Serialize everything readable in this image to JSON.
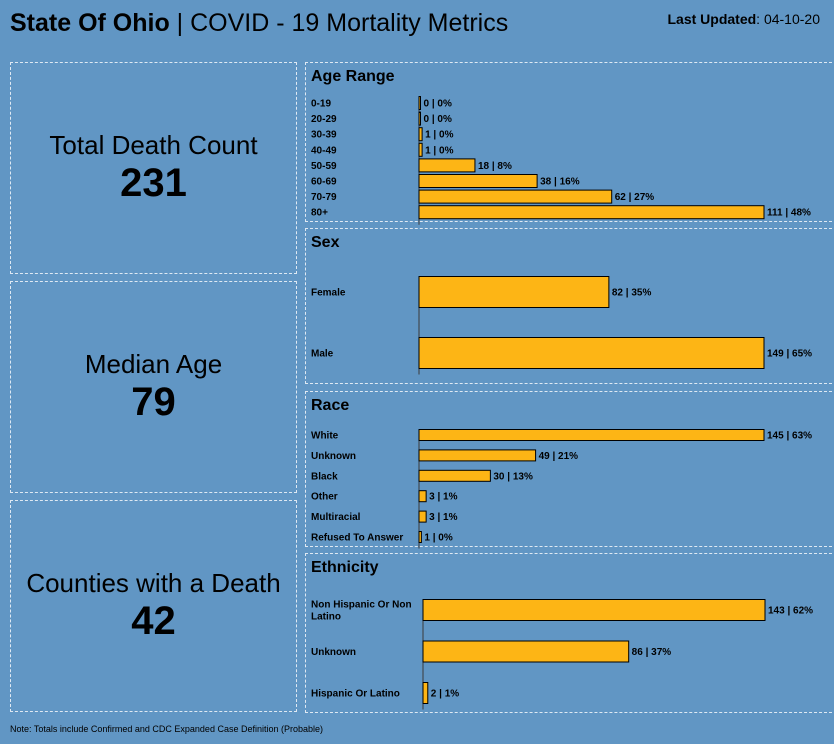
{
  "header": {
    "title_bold": "State Of Ohio",
    "title_rest": " | COVID - 19 Mortality Metrics",
    "updated_label": "Last Updated",
    "updated_value": ": 04-10-20"
  },
  "kpis": [
    {
      "label": "Total Death Count",
      "value": "231"
    },
    {
      "label": "Median Age",
      "value": "79"
    },
    {
      "label": "Counties with a Death",
      "value": "42"
    }
  ],
  "footnote": "Note: Totals include Confirmed and CDC Expanded Case Definition (Probable)",
  "colors": {
    "background": "#6196c4",
    "bar": "#fdb515",
    "bar_outline": "#000000",
    "border": "#dfe9f3"
  },
  "chart_data": [
    {
      "type": "bar",
      "orientation": "horizontal",
      "title": "Age Range",
      "categories": [
        "0-19",
        "20-29",
        "30-39",
        "40-49",
        "50-59",
        "60-69",
        "70-79",
        "80+"
      ],
      "values": [
        0,
        0,
        1,
        1,
        18,
        38,
        62,
        111
      ],
      "data_labels": [
        "0 | 0%",
        "0 | 0%",
        "1 | 0%",
        "1 | 0%",
        "18 | 8%",
        "38 | 16%",
        "62 | 27%",
        "111 | 48%"
      ]
    },
    {
      "type": "bar",
      "orientation": "horizontal",
      "title": "Sex",
      "categories": [
        "Female",
        "Male"
      ],
      "values": [
        82,
        149
      ],
      "data_labels": [
        "82 | 35%",
        "149 | 65%"
      ]
    },
    {
      "type": "bar",
      "orientation": "horizontal",
      "title": "Race",
      "categories": [
        "White",
        "Unknown",
        "Black",
        "Other",
        "Multiracial",
        "Refused To Answer"
      ],
      "values": [
        145,
        49,
        30,
        3,
        3,
        1
      ],
      "data_labels": [
        "145 | 63%",
        "49 | 21%",
        "30 | 13%",
        "3 | 1%",
        "3 | 1%",
        "1 | 0%"
      ]
    },
    {
      "type": "bar",
      "orientation": "horizontal",
      "title": "Ethnicity",
      "categories": [
        [
          "Non Hispanic Or Non",
          "Latino"
        ],
        "Unknown",
        "Hispanic Or Latino"
      ],
      "values": [
        143,
        86,
        2
      ],
      "data_labels": [
        "143 | 62%",
        "86 | 37%",
        "2 | 1%"
      ]
    }
  ]
}
